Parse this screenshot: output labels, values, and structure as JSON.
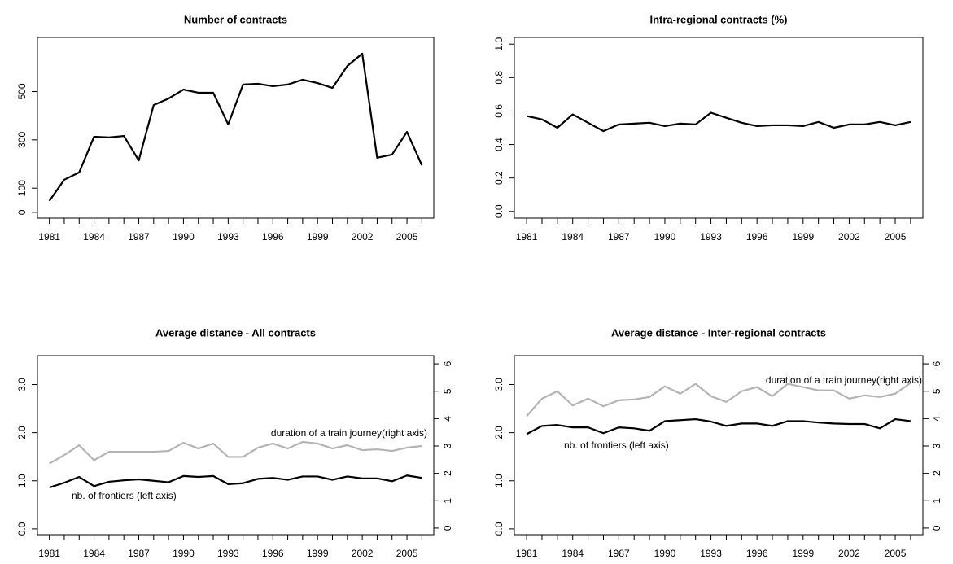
{
  "chart_data": [
    {
      "type": "line",
      "title": "Number of contracts",
      "x": [
        1981,
        1982,
        1983,
        1984,
        1985,
        1986,
        1987,
        1988,
        1989,
        1990,
        1991,
        1992,
        1993,
        1994,
        1995,
        1996,
        1997,
        1998,
        1999,
        2000,
        2001,
        2002,
        2003,
        2004,
        2005,
        2006
      ],
      "values": [
        47,
        135,
        165,
        313,
        310,
        316,
        215,
        444,
        471,
        508,
        495,
        495,
        364,
        529,
        532,
        522,
        529,
        549,
        535,
        515,
        606,
        657,
        226,
        239,
        333,
        195
      ],
      "color": "#000000",
      "xlim": [
        1980.2,
        2006.8
      ],
      "xticks": [
        1981,
        1984,
        1987,
        1990,
        1993,
        1996,
        1999,
        2002,
        2005
      ],
      "ylim": [
        -24,
        724
      ],
      "yticks": [
        0,
        100,
        300,
        500
      ]
    },
    {
      "type": "line",
      "title": "Intra-regional contracts (%)",
      "x": [
        1981,
        1982,
        1983,
        1984,
        1985,
        1986,
        1987,
        1988,
        1989,
        1990,
        1991,
        1992,
        1993,
        1994,
        1995,
        1996,
        1997,
        1998,
        1999,
        2000,
        2001,
        2002,
        2003,
        2004,
        2005,
        2006
      ],
      "values": [
        0.57,
        0.55,
        0.5,
        0.58,
        0.53,
        0.48,
        0.52,
        0.525,
        0.53,
        0.51,
        0.525,
        0.52,
        0.59,
        0.56,
        0.53,
        0.51,
        0.515,
        0.515,
        0.51,
        0.535,
        0.5,
        0.52,
        0.52,
        0.535,
        0.515,
        0.535
      ],
      "color": "#000000",
      "xlim": [
        1980.2,
        2006.8
      ],
      "xticks": [
        1981,
        1984,
        1987,
        1990,
        1993,
        1996,
        1999,
        2002,
        2005
      ],
      "ylim": [
        -0.04,
        1.04
      ],
      "yticks": [
        {
          "value": 0,
          "label": "0.0"
        },
        0.2,
        0.4,
        0.6,
        0.8,
        {
          "value": 1,
          "label": "1.0"
        }
      ]
    },
    {
      "type": "line",
      "title": "Average distance - All contracts",
      "x": [
        1981,
        1982,
        1983,
        1984,
        1985,
        1986,
        1987,
        1988,
        1989,
        1990,
        1991,
        1992,
        1993,
        1994,
        1995,
        1996,
        1997,
        1998,
        1999,
        2000,
        2001,
        2002,
        2003,
        2004,
        2005,
        2006
      ],
      "series": [
        {
          "name": "nb. of frontiers (left axis)",
          "color": "#000000",
          "values": [
            0.86,
            0.96,
            1.08,
            0.89,
            0.98,
            1.01,
            1.03,
            1.0,
            0.97,
            1.1,
            1.08,
            1.1,
            0.93,
            0.95,
            1.04,
            1.06,
            1.02,
            1.09,
            1.09,
            1.02,
            1.09,
            1.05,
            1.05,
            0.99,
            1.11,
            1.06
          ]
        },
        {
          "name": "duration of a train journey(right axis)",
          "color": "#b4b4b4",
          "axis": "y2",
          "values": [
            2.36,
            2.67,
            3.03,
            2.48,
            2.79,
            2.79,
            2.79,
            2.79,
            2.82,
            3.12,
            2.91,
            3.09,
            2.6,
            2.6,
            2.94,
            3.09,
            2.91,
            3.15,
            3.09,
            2.91,
            3.03,
            2.85,
            2.88,
            2.82,
            2.94,
            3.0
          ]
        }
      ],
      "xlim": [
        1980.2,
        2006.8
      ],
      "xticks": [
        1981,
        1984,
        1987,
        1990,
        1993,
        1996,
        1999,
        2002,
        2005
      ],
      "ylim": [
        -0.12,
        3.6
      ],
      "yticks": [
        {
          "value": 0,
          "label": "0.0"
        },
        {
          "value": 1,
          "label": "1.0"
        },
        {
          "value": 2,
          "label": "2.0"
        },
        {
          "value": 3,
          "label": "3.0"
        }
      ],
      "y2lim": [
        -0.24,
        6.3
      ],
      "y2ticks": [
        0,
        1,
        2,
        3,
        4,
        5,
        6
      ]
    },
    {
      "type": "line",
      "title": "Average distance - Inter-regional contracts",
      "x": [
        1981,
        1982,
        1983,
        1984,
        1985,
        1986,
        1987,
        1988,
        1989,
        1990,
        1991,
        1992,
        1993,
        1994,
        1995,
        1996,
        1997,
        1998,
        1999,
        2000,
        2001,
        2002,
        2003,
        2004,
        2005,
        2006
      ],
      "series": [
        {
          "name": "nb. of frontiers (left axis)",
          "color": "#000000",
          "values": [
            1.97,
            2.14,
            2.16,
            2.11,
            2.11,
            1.99,
            2.11,
            2.09,
            2.04,
            2.24,
            2.26,
            2.28,
            2.23,
            2.14,
            2.19,
            2.19,
            2.14,
            2.24,
            2.24,
            2.21,
            2.19,
            2.18,
            2.18,
            2.09,
            2.28,
            2.24
          ]
        },
        {
          "name": "duration of a train journey(right axis)",
          "color": "#b4b4b4",
          "axis": "y2",
          "values": [
            4.09,
            4.73,
            5.0,
            4.48,
            4.73,
            4.45,
            4.67,
            4.7,
            4.79,
            5.18,
            4.91,
            5.27,
            4.82,
            4.61,
            5.0,
            5.15,
            4.82,
            5.27,
            5.15,
            5.03,
            5.03,
            4.73,
            4.85,
            4.79,
            4.91,
            5.3
          ]
        }
      ],
      "xlim": [
        1980.2,
        2006.8
      ],
      "xticks": [
        1981,
        1984,
        1987,
        1990,
        1993,
        1996,
        1999,
        2002,
        2005
      ],
      "ylim": [
        -0.12,
        3.6
      ],
      "yticks": [
        {
          "value": 0,
          "label": "0.0"
        },
        {
          "value": 1,
          "label": "1.0"
        },
        {
          "value": 2,
          "label": "2.0"
        },
        {
          "value": 3,
          "label": "3.0"
        }
      ],
      "y2lim": [
        -0.24,
        6.3
      ],
      "y2ticks": [
        0,
        1,
        2,
        3,
        4,
        5,
        6
      ]
    }
  ]
}
